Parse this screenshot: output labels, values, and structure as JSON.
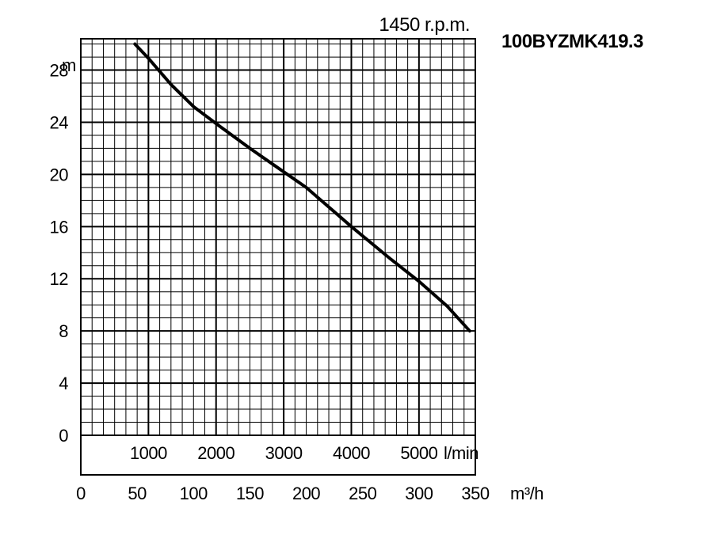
{
  "chart_data": {
    "type": "line",
    "title": "1450 r.p.m.",
    "model": "100BYZMK419.3",
    "ylabel": "m",
    "xlabel": "m³/h",
    "x2label": "l/min",
    "ylim": [
      0,
      30.4
    ],
    "xlim": [
      0,
      350
    ],
    "yticks": [
      0,
      4,
      8,
      12,
      16,
      20,
      24,
      28
    ],
    "xticks": [
      0,
      50,
      100,
      150,
      200,
      250,
      300,
      350
    ],
    "x2ticks": [
      1000,
      2000,
      3000,
      4000,
      5000
    ],
    "grid": true,
    "series": [
      {
        "x": [
          48,
          60,
          80,
          100,
          120,
          150,
          175,
          200,
          240,
          275,
          300,
          325,
          345
        ],
        "y": [
          30.0,
          28.9,
          26.9,
          25.2,
          23.9,
          22.0,
          20.5,
          19.0,
          16.0,
          13.5,
          11.8,
          9.9,
          8.0
        ]
      }
    ]
  }
}
